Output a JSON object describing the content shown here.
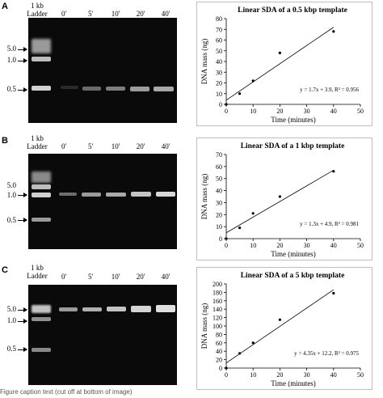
{
  "panels": [
    {
      "letter": "A",
      "ladder_label_line1": "1 kb",
      "ladder_label_line2": "Ladder",
      "lanes": [
        "0'",
        "5'",
        "10'",
        "20'",
        "40'"
      ],
      "marker_labels": [
        "5.0",
        "1.0",
        "0.5"
      ],
      "chart_data": {
        "type": "scatter",
        "title": "Linear SDA of a 0.5 kbp template",
        "xlabel": "Time (minutes)",
        "ylabel": "DNA mass (ng)",
        "x_ticks": [
          0,
          10,
          20,
          30,
          40,
          50
        ],
        "y_ticks": [
          0,
          10,
          20,
          30,
          40,
          50,
          60,
          70,
          80
        ],
        "xlim": [
          0,
          50
        ],
        "ylim": [
          0,
          80
        ],
        "points": [
          [
            0,
            0
          ],
          [
            5,
            10
          ],
          [
            10,
            22
          ],
          [
            20,
            48
          ],
          [
            40,
            68
          ]
        ],
        "trendline": {
          "slope": 1.7,
          "intercept": 3.9
        },
        "equation": "y = 1.7x + 3.9, R² = 0.956"
      }
    },
    {
      "letter": "B",
      "ladder_label_line1": "1 kb",
      "ladder_label_line2": "Ladder",
      "lanes": [
        "0'",
        "5'",
        "10'",
        "20'",
        "40'"
      ],
      "marker_labels": [
        "5.0",
        "1.0",
        "0.5"
      ],
      "chart_data": {
        "type": "scatter",
        "title": "Linear SDA of a 1 kbp template",
        "xlabel": "Time (minutes)",
        "ylabel": "DNA mass (ng)",
        "x_ticks": [
          0,
          10,
          20,
          30,
          40,
          50
        ],
        "y_ticks": [
          0,
          10,
          20,
          30,
          40,
          50,
          60,
          70
        ],
        "xlim": [
          0,
          50
        ],
        "ylim": [
          0,
          70
        ],
        "points": [
          [
            0,
            0
          ],
          [
            5,
            9
          ],
          [
            10,
            21
          ],
          [
            20,
            35
          ],
          [
            40,
            56
          ]
        ],
        "trendline": {
          "slope": 1.3,
          "intercept": 4.9
        },
        "equation": "y = 1.3x + 4.9, R² = 0.981"
      }
    },
    {
      "letter": "C",
      "ladder_label_line1": "1 kb",
      "ladder_label_line2": "Ladder",
      "lanes": [
        "0'",
        "5'",
        "10'",
        "20'",
        "40'"
      ],
      "marker_labels": [
        "5.0",
        "1.0",
        "0.5"
      ],
      "chart_data": {
        "type": "scatter",
        "title": "Linear SDA of a 5 kbp template",
        "xlabel": "Time (minutes)",
        "ylabel": "DNA mass (ng)",
        "x_ticks": [
          0,
          10,
          20,
          30,
          40,
          50
        ],
        "y_ticks": [
          0,
          20,
          40,
          60,
          80,
          100,
          120,
          140,
          160,
          180,
          200
        ],
        "xlim": [
          0,
          50
        ],
        "ylim": [
          0,
          200
        ],
        "points": [
          [
            0,
            0
          ],
          [
            5,
            35
          ],
          [
            10,
            60
          ],
          [
            20,
            115
          ],
          [
            40,
            178
          ]
        ],
        "trendline": {
          "slope": 4.35,
          "intercept": 12.2
        },
        "equation": "y = 4.35x + 12.2, R² = 0.975"
      }
    }
  ],
  "caption": "Figure caption text (cut off at bottom of image)"
}
